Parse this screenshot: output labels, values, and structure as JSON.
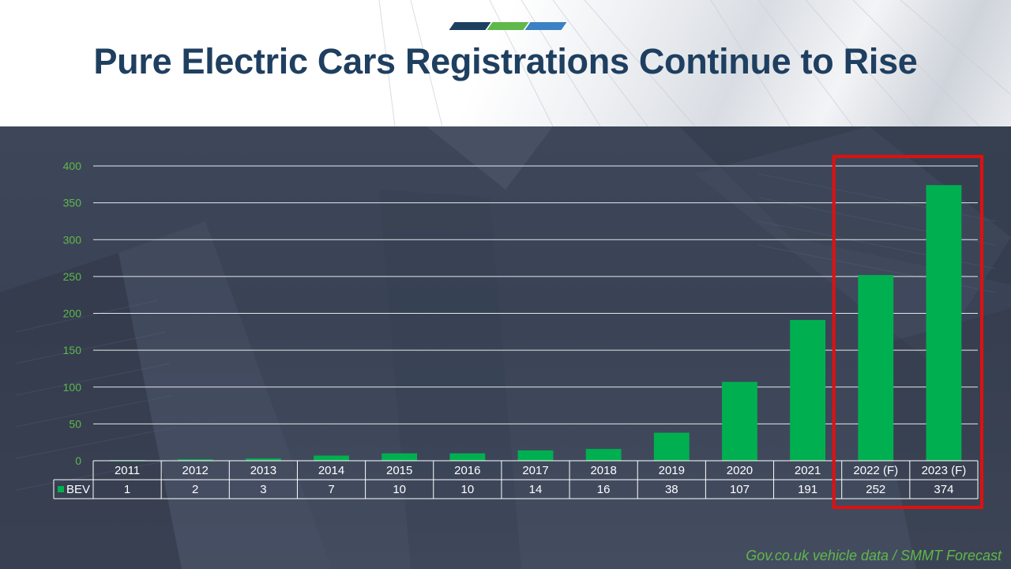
{
  "slide": {
    "title": "Pure Electric Cars Registrations Continue to Rise",
    "source": "Gov.co.uk vehicle data / SMMT Forecast",
    "accent_colors": [
      "#1f3f60",
      "#5fb84a",
      "#3b82c4"
    ]
  },
  "chart_data": {
    "type": "bar",
    "title": "",
    "xlabel": "",
    "ylabel": "",
    "categories": [
      "2011",
      "2012",
      "2013",
      "2014",
      "2015",
      "2016",
      "2017",
      "2018",
      "2019",
      "2020",
      "2021",
      "2022 (F)",
      "2023 (F)"
    ],
    "series": [
      {
        "name": "BEV",
        "values": [
          1,
          2,
          3,
          7,
          10,
          10,
          14,
          16,
          38,
          107,
          191,
          252,
          374
        ],
        "color": "#00b050"
      }
    ],
    "ylim": [
      0,
      400
    ],
    "yticks": [
      0,
      50,
      100,
      150,
      200,
      250,
      300,
      350,
      400
    ],
    "grid": true,
    "legend": "data-table",
    "data_table": true,
    "highlight": {
      "categories": [
        "2022 (F)",
        "2023 (F)"
      ],
      "color": "#e01010"
    }
  }
}
